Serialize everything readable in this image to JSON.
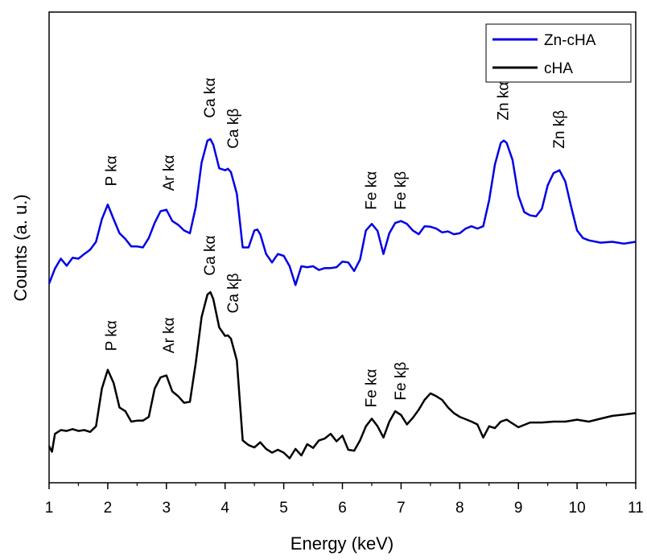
{
  "chart_data": {
    "type": "line",
    "title": "",
    "xlabel": "Energy (keV)",
    "ylabel": "Counts (a. u.)",
    "xlim": [
      1,
      11
    ],
    "ylim": [
      0,
      1
    ],
    "x_ticks": [
      "1",
      "2",
      "3",
      "4",
      "5",
      "6",
      "7",
      "8",
      "9",
      "10",
      "11"
    ],
    "y_tick_labels_shown": false,
    "grid": false,
    "legend_position": "top-right",
    "series": [
      {
        "name": "Zn-cHA",
        "color": "#0000e6",
        "x": [
          1.0,
          1.1,
          1.2,
          1.3,
          1.4,
          1.5,
          1.6,
          1.7,
          1.8,
          1.9,
          2.0,
          2.1,
          2.2,
          2.3,
          2.4,
          2.5,
          2.6,
          2.7,
          2.8,
          2.9,
          3.0,
          3.1,
          3.2,
          3.3,
          3.4,
          3.5,
          3.6,
          3.7,
          3.75,
          3.8,
          3.9,
          4.0,
          4.05,
          4.1,
          4.2,
          4.3,
          4.4,
          4.5,
          4.55,
          4.6,
          4.7,
          4.8,
          4.9,
          5.0,
          5.1,
          5.2,
          5.3,
          5.4,
          5.5,
          5.6,
          5.7,
          5.8,
          5.9,
          6.0,
          6.1,
          6.2,
          6.3,
          6.4,
          6.5,
          6.6,
          6.7,
          6.8,
          6.9,
          7.0,
          7.1,
          7.2,
          7.3,
          7.4,
          7.5,
          7.6,
          7.7,
          7.8,
          7.9,
          8.0,
          8.1,
          8.2,
          8.3,
          8.4,
          8.5,
          8.6,
          8.7,
          8.75,
          8.8,
          8.9,
          9.0,
          9.1,
          9.2,
          9.3,
          9.4,
          9.5,
          9.6,
          9.7,
          9.8,
          9.9,
          10.0,
          10.1,
          10.2,
          10.4,
          10.6,
          10.8,
          11.0
        ],
        "values": [
          0.423,
          0.455,
          0.476,
          0.461,
          0.478,
          0.476,
          0.486,
          0.495,
          0.512,
          0.56,
          0.591,
          0.56,
          0.53,
          0.518,
          0.502,
          0.502,
          0.5,
          0.52,
          0.552,
          0.577,
          0.58,
          0.556,
          0.548,
          0.536,
          0.53,
          0.586,
          0.68,
          0.727,
          0.73,
          0.718,
          0.668,
          0.664,
          0.667,
          0.66,
          0.614,
          0.5,
          0.5,
          0.536,
          0.538,
          0.528,
          0.486,
          0.468,
          0.486,
          0.482,
          0.46,
          0.42,
          0.46,
          0.458,
          0.46,
          0.452,
          0.456,
          0.456,
          0.458,
          0.47,
          0.468,
          0.45,
          0.474,
          0.536,
          0.55,
          0.535,
          0.486,
          0.53,
          0.552,
          0.556,
          0.55,
          0.536,
          0.528,
          0.545,
          0.544,
          0.54,
          0.532,
          0.534,
          0.528,
          0.53,
          0.54,
          0.545,
          0.54,
          0.545,
          0.6,
          0.676,
          0.722,
          0.727,
          0.722,
          0.686,
          0.61,
          0.575,
          0.568,
          0.566,
          0.582,
          0.632,
          0.658,
          0.664,
          0.64,
          0.586,
          0.536,
          0.52,
          0.515,
          0.51,
          0.512,
          0.508,
          0.512
        ]
      },
      {
        "name": "cHA",
        "color": "#000000",
        "x": [
          1.0,
          1.05,
          1.1,
          1.2,
          1.3,
          1.4,
          1.5,
          1.6,
          1.7,
          1.8,
          1.9,
          2.0,
          2.1,
          2.2,
          2.3,
          2.4,
          2.5,
          2.6,
          2.7,
          2.8,
          2.9,
          3.0,
          3.1,
          3.2,
          3.3,
          3.4,
          3.5,
          3.6,
          3.7,
          3.75,
          3.8,
          3.9,
          4.0,
          4.05,
          4.1,
          4.2,
          4.3,
          4.4,
          4.5,
          4.6,
          4.7,
          4.8,
          4.9,
          5.0,
          5.1,
          5.2,
          5.3,
          5.4,
          5.5,
          5.6,
          5.7,
          5.8,
          5.9,
          6.0,
          6.1,
          6.2,
          6.3,
          6.4,
          6.5,
          6.6,
          6.7,
          6.8,
          6.9,
          7.0,
          7.1,
          7.2,
          7.3,
          7.4,
          7.5,
          7.6,
          7.7,
          7.8,
          7.9,
          8.0,
          8.1,
          8.2,
          8.3,
          8.4,
          8.5,
          8.6,
          8.7,
          8.8,
          8.9,
          9.0,
          9.2,
          9.4,
          9.6,
          9.8,
          10.0,
          10.2,
          10.4,
          10.6,
          10.8,
          11.0
        ],
        "values": [
          0.078,
          0.066,
          0.104,
          0.112,
          0.11,
          0.114,
          0.11,
          0.112,
          0.108,
          0.12,
          0.2,
          0.24,
          0.212,
          0.16,
          0.152,
          0.13,
          0.132,
          0.132,
          0.14,
          0.2,
          0.224,
          0.228,
          0.194,
          0.184,
          0.17,
          0.172,
          0.255,
          0.352,
          0.4,
          0.405,
          0.39,
          0.33,
          0.312,
          0.313,
          0.306,
          0.26,
          0.09,
          0.08,
          0.075,
          0.086,
          0.072,
          0.064,
          0.07,
          0.064,
          0.052,
          0.072,
          0.058,
          0.082,
          0.074,
          0.09,
          0.094,
          0.104,
          0.088,
          0.1,
          0.07,
          0.068,
          0.09,
          0.12,
          0.136,
          0.12,
          0.096,
          0.13,
          0.152,
          0.144,
          0.124,
          0.138,
          0.155,
          0.176,
          0.19,
          0.184,
          0.176,
          0.16,
          0.148,
          0.14,
          0.135,
          0.13,
          0.124,
          0.096,
          0.12,
          0.116,
          0.13,
          0.134,
          0.126,
          0.118,
          0.128,
          0.128,
          0.13,
          0.13,
          0.134,
          0.13,
          0.136,
          0.142,
          0.145,
          0.148
        ]
      }
    ],
    "annotations": [
      {
        "text": "P kα",
        "x": 2.05,
        "y": 0.63,
        "series": "Zn-cHA"
      },
      {
        "text": "Ar kα",
        "x": 3.03,
        "y": 0.62,
        "series": "Zn-cHA"
      },
      {
        "text": "Ca kα",
        "x": 3.73,
        "y": 0.775,
        "series": "Zn-cHA"
      },
      {
        "text": "Ca kβ",
        "x": 4.13,
        "y": 0.71,
        "series": "Zn-cHA"
      },
      {
        "text": "Fe kα",
        "x": 6.48,
        "y": 0.58,
        "series": "Zn-cHA"
      },
      {
        "text": "Fe kβ",
        "x": 6.98,
        "y": 0.58,
        "series": "Zn-cHA"
      },
      {
        "text": "Zn kα",
        "x": 8.73,
        "y": 0.77,
        "series": "Zn-cHA"
      },
      {
        "text": "Zn kβ",
        "x": 9.68,
        "y": 0.71,
        "series": "Zn-cHA"
      },
      {
        "text": "P kα",
        "x": 2.05,
        "y": 0.28,
        "series": "cHA"
      },
      {
        "text": "Ar kα",
        "x": 3.03,
        "y": 0.275,
        "series": "cHA"
      },
      {
        "text": "Ca kα",
        "x": 3.73,
        "y": 0.44,
        "series": "cHA"
      },
      {
        "text": "Ca kβ",
        "x": 4.13,
        "y": 0.36,
        "series": "cHA"
      },
      {
        "text": "Fe kα",
        "x": 6.48,
        "y": 0.16,
        "series": "cHA"
      },
      {
        "text": "Fe kβ",
        "x": 6.98,
        "y": 0.175,
        "series": "cHA"
      }
    ]
  }
}
